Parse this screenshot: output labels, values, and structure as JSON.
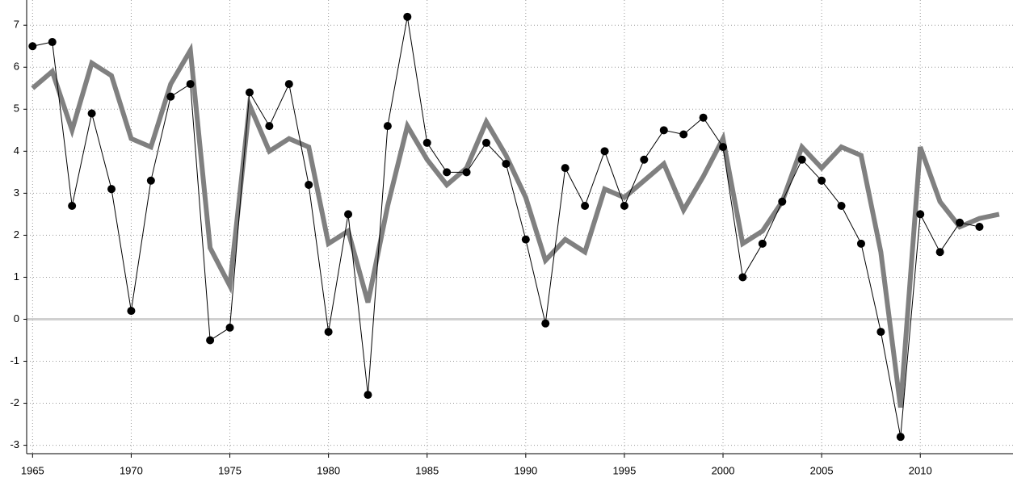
{
  "chart_data": {
    "type": "line",
    "x": [
      1965,
      1966,
      1967,
      1968,
      1969,
      1970,
      1971,
      1972,
      1973,
      1974,
      1975,
      1976,
      1977,
      1978,
      1979,
      1980,
      1981,
      1982,
      1983,
      1984,
      1985,
      1986,
      1987,
      1988,
      1989,
      1990,
      1991,
      1992,
      1993,
      1994,
      1995,
      1996,
      1997,
      1998,
      1999,
      2000,
      2001,
      2002,
      2003,
      2004,
      2005,
      2006,
      2007,
      2008,
      2009,
      2010,
      2011,
      2012,
      2013,
      2014
    ],
    "series": [
      {
        "color": "#808080",
        "values": [
          5.5,
          5.9,
          4.5,
          6.1,
          5.8,
          4.3,
          4.1,
          5.6,
          6.4,
          1.7,
          0.8,
          5.1,
          4.0,
          4.3,
          4.1,
          1.8,
          2.1,
          0.4,
          2.7,
          4.6,
          3.8,
          3.2,
          3.6,
          4.7,
          3.9,
          2.9,
          1.4,
          1.9,
          1.6,
          3.1,
          2.9,
          3.3,
          3.7,
          2.6,
          3.4,
          4.3,
          1.8,
          2.1,
          2.8,
          4.1,
          3.6,
          4.1,
          3.9,
          1.6,
          -2.1,
          4.1,
          2.8,
          2.2,
          2.4,
          2.5
        ]
      },
      {
        "color": "#000000",
        "values": [
          6.5,
          6.6,
          2.7,
          4.9,
          3.1,
          0.2,
          3.3,
          5.3,
          5.6,
          -0.5,
          -0.2,
          5.4,
          4.6,
          5.6,
          3.2,
          -0.3,
          2.5,
          -1.8,
          4.6,
          7.2,
          4.2,
          3.5,
          3.5,
          4.2,
          3.7,
          1.9,
          -0.1,
          3.6,
          2.7,
          4.0,
          2.7,
          3.8,
          4.5,
          4.4,
          4.8,
          4.1,
          1.0,
          1.8,
          2.8,
          3.8,
          3.3,
          2.7,
          1.8,
          -0.3,
          -2.8,
          2.5,
          1.6,
          2.3,
          2.2,
          null
        ]
      }
    ],
    "xlim": [
      1964.7,
      2014.7
    ],
    "xticks": [
      1965,
      1970,
      1975,
      1980,
      1985,
      1990,
      1995,
      2000,
      2005,
      2010
    ],
    "ylim": [
      -3.2,
      7.6
    ],
    "yticks": [
      -3,
      -2,
      -1,
      0,
      1,
      2,
      3,
      4,
      5,
      6,
      7
    ],
    "grid": true
  }
}
